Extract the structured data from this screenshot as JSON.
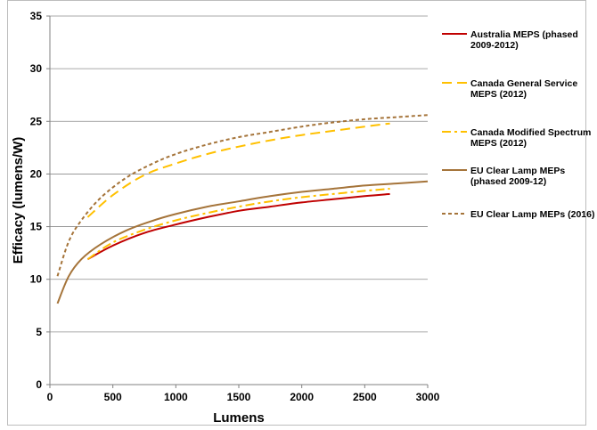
{
  "chart_data": {
    "type": "line",
    "title": "",
    "xlabel": "Lumens",
    "ylabel": "Efficacy (lumens/W)",
    "xlim": [
      0,
      3000
    ],
    "ylim": [
      0,
      35
    ],
    "x_ticks": [
      "0",
      "500",
      "1000",
      "1500",
      "2000",
      "2500",
      "3000"
    ],
    "y_ticks": [
      "0",
      "5",
      "10",
      "15",
      "20",
      "25",
      "30",
      "35"
    ],
    "grid": "horizontal",
    "legend_position": "right",
    "series": [
      {
        "name": "Australia MEPS (phased 2009-2012)",
        "legend_lines": [
          "Australia MEPS (phased",
          "2009-2012)"
        ],
        "color": "#c00000",
        "dash": "solid",
        "x": [
          300,
          500,
          750,
          1000,
          1250,
          1500,
          1750,
          2000,
          2250,
          2500,
          2700
        ],
        "y": [
          11.9,
          13.2,
          14.4,
          15.2,
          15.9,
          16.5,
          16.9,
          17.3,
          17.6,
          17.9,
          18.1
        ]
      },
      {
        "name": "Canada General Service MEPS (2012)",
        "legend_lines": [
          "Canada General Service",
          "MEPS (2012)"
        ],
        "color": "#ffc000",
        "dash": "long-dash",
        "x": [
          300,
          500,
          750,
          1000,
          1250,
          1500,
          1750,
          2000,
          2250,
          2500,
          2700
        ],
        "y": [
          15.9,
          18.0,
          19.9,
          21.0,
          21.9,
          22.6,
          23.2,
          23.7,
          24.1,
          24.5,
          24.8
        ]
      },
      {
        "name": "Canada Modified Spectrum MEPS (2012)",
        "legend_lines": [
          "Canada Modified Spectrum",
          "MEPS (2012)"
        ],
        "color": "#ffc000",
        "dash": "dash-dot",
        "x": [
          300,
          500,
          750,
          1000,
          1250,
          1500,
          1750,
          2000,
          2250,
          2500,
          2700
        ],
        "y": [
          11.9,
          13.5,
          14.7,
          15.6,
          16.3,
          16.9,
          17.4,
          17.8,
          18.1,
          18.4,
          18.6
        ]
      },
      {
        "name": "EU Clear Lamp MEPs (phased 2009-12)",
        "legend_lines": [
          "EU Clear Lamp MEPs",
          "(phased 2009-12)"
        ],
        "color": "#a5743a",
        "dash": "solid",
        "x": [
          60,
          150,
          250,
          400,
          600,
          800,
          1000,
          1250,
          1500,
          1750,
          2000,
          2250,
          2500,
          2750,
          3000
        ],
        "y": [
          7.7,
          10.3,
          11.9,
          13.3,
          14.6,
          15.5,
          16.2,
          16.9,
          17.4,
          17.9,
          18.3,
          18.6,
          18.9,
          19.1,
          19.3
        ]
      },
      {
        "name": "EU Clear Lamp MEPs (2016)",
        "legend_lines": [
          "EU Clear Lamp MEPs (2016)"
        ],
        "color": "#a5743a",
        "dash": "short-dash",
        "x": [
          60,
          150,
          250,
          400,
          600,
          800,
          1000,
          1250,
          1500,
          1750,
          2000,
          2250,
          2500,
          2750,
          3000
        ],
        "y": [
          10.3,
          13.6,
          15.6,
          17.7,
          19.6,
          20.9,
          21.9,
          22.8,
          23.5,
          24.0,
          24.5,
          24.9,
          25.2,
          25.4,
          25.6
        ]
      }
    ]
  }
}
